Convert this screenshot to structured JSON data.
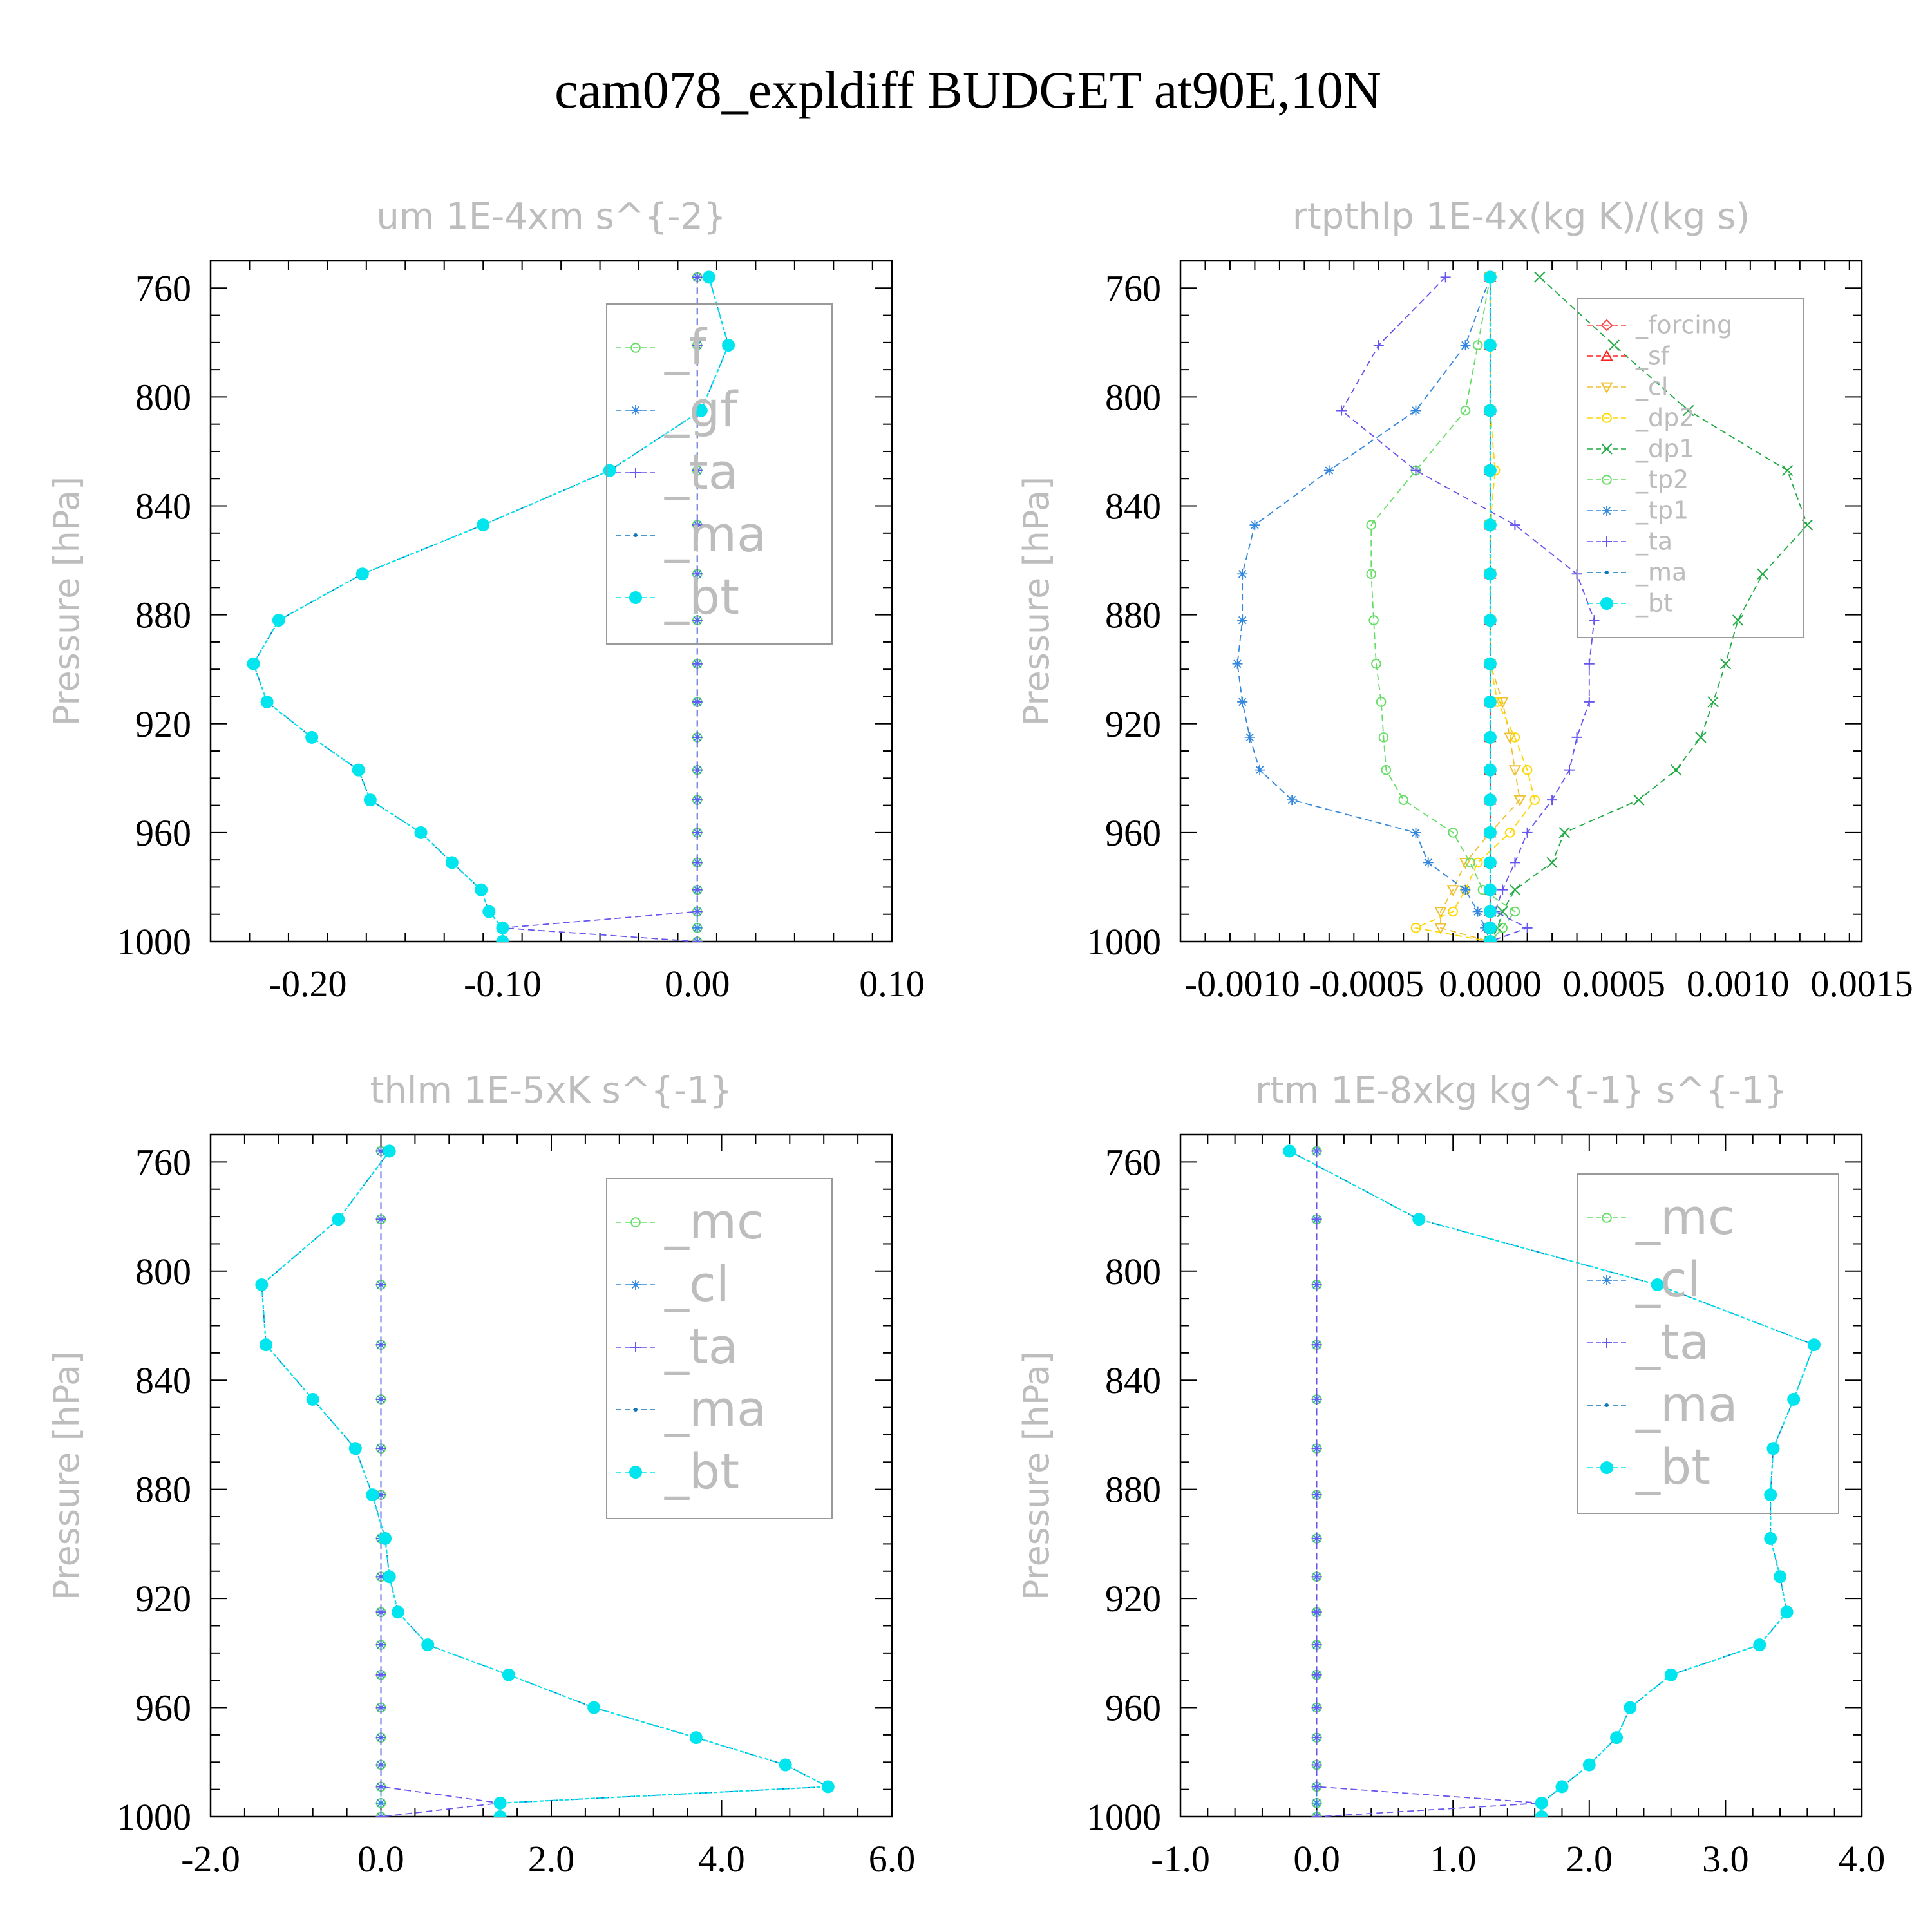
{
  "title": "cam078_expldiff  BUDGET at90E,10N",
  "colors": {
    "forcing": "#ff4444",
    "sf": "#ff2222",
    "cl": "#f0c030",
    "dp2": "#ffd700",
    "dp1": "#22aa44",
    "tp2": "#66dd66",
    "mc": "#66dd66",
    "tp1": "#3388dd",
    "gf": "#3388dd",
    "ta": "#6655ee",
    "ma": "#1177bb",
    "f": "#66dd66",
    "bt": "#00e5ee"
  },
  "chart_data": [
    {
      "type": "line",
      "title": "um  1E-4xm s^{-2}",
      "ylabel": "Pressure [hPa]",
      "ylim": [
        1000,
        750
      ],
      "y_ticks": [
        "760",
        "800",
        "840",
        "880",
        "920",
        "960",
        "1000"
      ],
      "xlim": [
        -0.25,
        0.1
      ],
      "x_ticks": [
        "-0.20",
        "-0.10",
        "0.00",
        "0.10"
      ],
      "legend_position": "top-right",
      "legend": [
        "_f",
        "_gf",
        "_ta",
        "_ma",
        "_bt"
      ],
      "pressure": [
        756,
        781,
        805,
        827,
        847,
        865,
        882,
        898,
        912,
        925,
        937,
        948,
        960,
        971,
        981,
        989,
        995,
        1000
      ],
      "series": [
        {
          "name": "_f",
          "color_key": "f",
          "marker": "circle-open",
          "values": [
            0,
            0,
            0,
            0,
            0,
            0,
            0,
            0,
            0,
            0,
            0,
            0,
            0,
            0,
            0,
            0,
            0,
            0
          ]
        },
        {
          "name": "_gf",
          "color_key": "gf",
          "marker": "asterisk",
          "values": [
            0,
            0,
            0,
            0,
            0,
            0,
            0,
            0,
            0,
            0,
            0,
            0,
            0,
            0,
            0,
            0,
            0,
            0
          ]
        },
        {
          "name": "_ta",
          "color_key": "ta",
          "marker": "plus",
          "values": [
            0,
            0,
            0,
            0,
            0,
            0,
            0,
            0,
            0,
            0,
            0,
            0,
            0,
            0,
            0,
            0,
            -0.1,
            0
          ]
        },
        {
          "name": "_ma",
          "color_key": "ma",
          "marker": "dot",
          "values": [
            0.006,
            0.016,
            0.002,
            -0.045,
            -0.11,
            -0.172,
            -0.215,
            -0.228,
            -0.221,
            -0.198,
            -0.174,
            -0.168,
            -0.142,
            -0.126,
            -0.111,
            -0.107,
            -0.1,
            -0.1
          ]
        },
        {
          "name": "_bt",
          "color_key": "bt",
          "marker": "filled",
          "values": [
            0.006,
            0.016,
            0.002,
            -0.045,
            -0.11,
            -0.172,
            -0.215,
            -0.228,
            -0.221,
            -0.198,
            -0.174,
            -0.168,
            -0.142,
            -0.126,
            -0.111,
            -0.107,
            -0.1,
            -0.1
          ]
        }
      ]
    },
    {
      "type": "line",
      "title": "rtpthlp  1E-4x(kg K)/(kg s)",
      "ylabel": "Pressure [hPa]",
      "ylim": [
        1000,
        750
      ],
      "y_ticks": [
        "760",
        "800",
        "840",
        "880",
        "920",
        "960",
        "1000"
      ],
      "xlim": [
        -0.00125,
        0.0015
      ],
      "x_ticks": [
        "-0.0010",
        "-0.0005",
        "0.0000",
        "0.0005",
        "0.0010",
        "0.0015"
      ],
      "legend_position": "top-right",
      "legend": [
        "_forcing",
        "_sf",
        "_cl",
        "_dp2",
        "_dp1",
        "_tp2",
        "_tp1",
        "_ta",
        "_ma",
        "_bt"
      ],
      "pressure": [
        756,
        781,
        805,
        827,
        847,
        865,
        882,
        898,
        912,
        925,
        937,
        948,
        960,
        971,
        981,
        989,
        995,
        1000
      ],
      "series": [
        {
          "name": "_forcing",
          "color_key": "forcing",
          "marker": "diamond-open",
          "values": [
            0,
            0,
            0,
            0,
            0,
            0,
            0,
            0,
            0,
            0,
            0,
            0,
            0,
            0,
            0,
            0,
            0,
            0
          ]
        },
        {
          "name": "_sf",
          "color_key": "sf",
          "marker": "triangle-open",
          "values": [
            0,
            0,
            0,
            0,
            0,
            0,
            0,
            0,
            0,
            0,
            0,
            0,
            0,
            0,
            0,
            0,
            0,
            0
          ]
        },
        {
          "name": "_cl",
          "color_key": "cl",
          "marker": "triangle-down-open",
          "values": [
            0,
            0,
            0,
            0,
            0,
            0,
            0,
            0,
            5e-05,
            8e-05,
            0.0001,
            0.00012,
            0.0,
            -0.0001,
            -0.00015,
            -0.0002,
            -0.0002,
            0
          ]
        },
        {
          "name": "_dp2",
          "color_key": "dp2",
          "marker": "circle-open",
          "values": [
            0,
            0,
            0,
            2e-05,
            0,
            0,
            0,
            0,
            3e-05,
            0.0001,
            0.00015,
            0.00018,
            8e-05,
            -5e-05,
            -0.0001,
            -0.00015,
            -0.0003,
            0
          ]
        },
        {
          "name": "_dp1",
          "color_key": "dp1",
          "marker": "cross",
          "values": [
            0.0002,
            0.0005,
            0.0008,
            0.0012,
            0.00128,
            0.0011,
            0.001,
            0.00095,
            0.0009,
            0.00085,
            0.00075,
            0.0006,
            0.0003,
            0.00025,
            0.0001,
            5e-05,
            3e-05,
            0
          ]
        },
        {
          "name": "_tp2",
          "color_key": "tp2",
          "marker": "circle-open",
          "values": [
            0,
            -5e-05,
            -0.0001,
            -0.0003,
            -0.00048,
            -0.00048,
            -0.00047,
            -0.00046,
            -0.00044,
            -0.00043,
            -0.00042,
            -0.00035,
            -0.00015,
            -8e-05,
            -3e-05,
            0.0001,
            5e-05,
            0
          ]
        },
        {
          "name": "_tp1",
          "color_key": "tp1",
          "marker": "asterisk",
          "values": [
            0,
            -0.0001,
            -0.0003,
            -0.00065,
            -0.00095,
            -0.001,
            -0.001,
            -0.00102,
            -0.001,
            -0.00097,
            -0.00093,
            -0.0008,
            -0.0003,
            -0.00025,
            -0.0001,
            -5e-05,
            -2e-05,
            0
          ]
        },
        {
          "name": "_ta",
          "color_key": "ta",
          "marker": "plus",
          "values": [
            -0.00018,
            -0.00045,
            -0.0006,
            -0.0003,
            0.0001,
            0.00035,
            0.00042,
            0.0004,
            0.0004,
            0.00035,
            0.00032,
            0.00025,
            0.00015,
            0.0001,
            5e-05,
            2e-05,
            0.00015,
            0
          ]
        },
        {
          "name": "_ma",
          "color_key": "ma",
          "marker": "dot",
          "values": [
            0,
            0,
            0,
            0,
            0,
            0,
            0,
            0,
            0,
            0,
            0,
            0,
            0,
            0,
            0,
            0,
            0,
            0
          ]
        },
        {
          "name": "_bt",
          "color_key": "bt",
          "marker": "filled",
          "values": [
            0,
            0,
            0,
            0,
            0,
            0,
            0,
            0,
            0,
            0,
            0,
            0,
            0,
            0,
            0,
            0,
            0,
            0
          ]
        }
      ]
    },
    {
      "type": "line",
      "title": "thlm  1E-5xK s^{-1}",
      "ylabel": "Pressure [hPa]",
      "ylim": [
        1000,
        750
      ],
      "y_ticks": [
        "760",
        "800",
        "840",
        "880",
        "920",
        "960",
        "1000"
      ],
      "xlim": [
        -2.0,
        6.0
      ],
      "x_ticks": [
        "-2.0",
        "0.0",
        "2.0",
        "4.0",
        "6.0"
      ],
      "legend_position": "top-right",
      "legend": [
        "_mc",
        "_cl",
        "_ta",
        "_ma",
        "_bt"
      ],
      "pressure": [
        756,
        781,
        805,
        827,
        847,
        865,
        882,
        898,
        912,
        925,
        937,
        948,
        960,
        971,
        981,
        989,
        995,
        1000
      ],
      "series": [
        {
          "name": "_mc",
          "color_key": "mc",
          "marker": "circle-open",
          "values": [
            0,
            0,
            0,
            0,
            0,
            0,
            0,
            0,
            0,
            0,
            0,
            0,
            0,
            0,
            0,
            0,
            0,
            0
          ]
        },
        {
          "name": "_cl",
          "color_key": "gf",
          "marker": "asterisk",
          "values": [
            0,
            0,
            0,
            0,
            0,
            0,
            0,
            0,
            0,
            0,
            0,
            0,
            0,
            0,
            0,
            0,
            0,
            0
          ]
        },
        {
          "name": "_ta",
          "color_key": "ta",
          "marker": "plus",
          "values": [
            0,
            0,
            0,
            0,
            0,
            0,
            0,
            0,
            0,
            0,
            0,
            0,
            0,
            0,
            0,
            0,
            1.4,
            0
          ]
        },
        {
          "name": "_ma",
          "color_key": "ma",
          "marker": "dot",
          "values": [
            0.1,
            -0.5,
            -1.4,
            -1.35,
            -0.8,
            -0.3,
            -0.1,
            0.05,
            0.1,
            0.2,
            0.55,
            1.5,
            2.5,
            3.7,
            4.75,
            5.25,
            1.4,
            1.4
          ]
        },
        {
          "name": "_bt",
          "color_key": "bt",
          "marker": "filled",
          "values": [
            0.1,
            -0.5,
            -1.4,
            -1.35,
            -0.8,
            -0.3,
            -0.1,
            0.05,
            0.1,
            0.2,
            0.55,
            1.5,
            2.5,
            3.7,
            4.75,
            5.25,
            1.4,
            1.4
          ]
        }
      ]
    },
    {
      "type": "line",
      "title": "rtm  1E-8xkg kg^{-1} s^{-1}",
      "ylabel": "Pressure [hPa]",
      "ylim": [
        1000,
        750
      ],
      "y_ticks": [
        "760",
        "800",
        "840",
        "880",
        "920",
        "960",
        "1000"
      ],
      "xlim": [
        -1.0,
        4.0
      ],
      "x_ticks": [
        "-1.0",
        "0.0",
        "1.0",
        "2.0",
        "3.0",
        "4.0"
      ],
      "legend_position": "top-right",
      "legend": [
        "_mc",
        "_cl",
        "_ta",
        "_ma",
        "_bt"
      ],
      "pressure": [
        756,
        781,
        805,
        827,
        847,
        865,
        882,
        898,
        912,
        925,
        937,
        948,
        960,
        971,
        981,
        989,
        995,
        1000
      ],
      "series": [
        {
          "name": "_mc",
          "color_key": "mc",
          "marker": "circle-open",
          "values": [
            0,
            0,
            0,
            0,
            0,
            0,
            0,
            0,
            0,
            0,
            0,
            0,
            0,
            0,
            0,
            0,
            0,
            0
          ]
        },
        {
          "name": "_cl",
          "color_key": "gf",
          "marker": "asterisk",
          "values": [
            0,
            0,
            0,
            0,
            0,
            0,
            0,
            0,
            0,
            0,
            0,
            0,
            0,
            0,
            0,
            0,
            0,
            0
          ]
        },
        {
          "name": "_ta",
          "color_key": "ta",
          "marker": "plus",
          "values": [
            0,
            0,
            0,
            0,
            0,
            0,
            0,
            0,
            0,
            0,
            0,
            0,
            0,
            0,
            0,
            0,
            1.65,
            0
          ]
        },
        {
          "name": "_ma",
          "color_key": "ma",
          "marker": "dot",
          "values": [
            -0.2,
            0.75,
            2.5,
            3.65,
            3.5,
            3.35,
            3.33,
            3.33,
            3.4,
            3.45,
            3.25,
            2.6,
            2.3,
            2.2,
            2.0,
            1.8,
            1.65,
            1.65
          ]
        },
        {
          "name": "_bt",
          "color_key": "bt",
          "marker": "filled",
          "values": [
            -0.2,
            0.75,
            2.5,
            3.65,
            3.5,
            3.35,
            3.33,
            3.33,
            3.4,
            3.45,
            3.25,
            2.6,
            2.3,
            2.2,
            2.0,
            1.8,
            1.65,
            1.65
          ]
        }
      ]
    }
  ]
}
